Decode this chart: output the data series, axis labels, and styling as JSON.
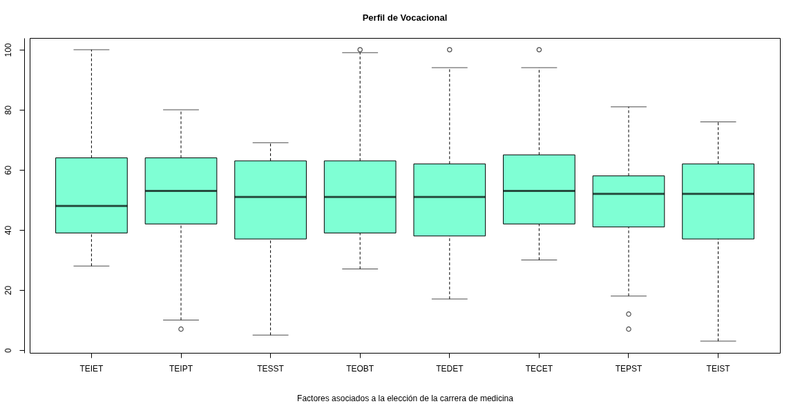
{
  "chart_data": {
    "type": "box",
    "title": "Perfil de Vocacional",
    "xlabel": "Factores asociados a la elección de la carrera de medicina",
    "categories": [
      "TEIET",
      "TEIPT",
      "TESST",
      "TEOBT",
      "TEDET",
      "TECET",
      "TEPST",
      "TEIST"
    ],
    "ylim": [
      -0.9,
      103.9
    ],
    "yticks": [
      0,
      20,
      40,
      60,
      80,
      100
    ],
    "series": [
      {
        "color": "#7fffd4",
        "boxes": [
          {
            "low": 28,
            "q1": 39,
            "median": 48,
            "q3": 64,
            "high": 100
          },
          {
            "low": 10,
            "q1": 42,
            "median": 53,
            "q3": 64,
            "high": 80,
            "outliers": [
              7
            ]
          },
          {
            "low": 5,
            "q1": 37,
            "median": 51,
            "q3": 63,
            "high": 69
          },
          {
            "low": 27,
            "q1": 39,
            "median": 51,
            "q3": 63,
            "high": 99,
            "outliers": [
              100
            ]
          },
          {
            "low": 17,
            "q1": 38,
            "median": 51,
            "q3": 62,
            "high": 94,
            "outliers": [
              100
            ]
          },
          {
            "low": 30,
            "q1": 42,
            "median": 53,
            "q3": 65,
            "high": 94,
            "outliers": [
              100
            ]
          },
          {
            "low": 18,
            "q1": 41,
            "median": 52,
            "q3": 58,
            "high": 81,
            "outliers": [
              12,
              7
            ]
          },
          {
            "low": 3,
            "q1": 37,
            "median": 52,
            "q3": 62,
            "high": 76
          }
        ]
      }
    ]
  }
}
